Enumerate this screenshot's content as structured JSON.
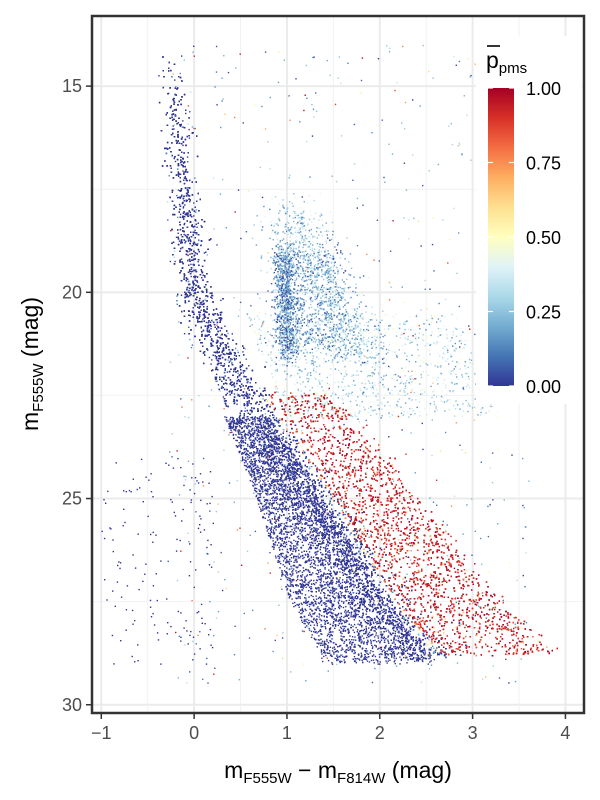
{
  "chart_data": {
    "type": "scatter",
    "title": "",
    "xlabel": {
      "main": "m",
      "sub1": "F555W",
      "sep": " − m",
      "sub2": "F814W",
      "unit": " (mag)"
    },
    "ylabel": {
      "main": "m",
      "sub": "F555W",
      "unit": " (mag)"
    },
    "xlim": [
      -1.1,
      4.2
    ],
    "ylim": [
      30.2,
      13.3
    ],
    "y_reversed": true,
    "x_ticks": [
      -1,
      0,
      1,
      2,
      3,
      4
    ],
    "y_ticks": [
      15,
      20,
      25,
      30
    ],
    "x_tick_labels": [
      "−1",
      "0",
      "1",
      "2",
      "3",
      "4"
    ],
    "y_tick_labels": [
      "15",
      "20",
      "25",
      "30"
    ],
    "grid": true,
    "colorbar": {
      "title_main": "p",
      "title_sub": "pms",
      "title_overline": true,
      "ticks": [
        0.0,
        0.25,
        0.5,
        0.75,
        1.0
      ],
      "tick_labels": [
        "0.00",
        "0.25",
        "0.50",
        "0.75",
        "1.00"
      ],
      "colors": [
        "#313695",
        "#4575b4",
        "#74add1",
        "#abd9e9",
        "#e0f3f8",
        "#ffffbf",
        "#fee090",
        "#fdae61",
        "#f46d43",
        "#d73027",
        "#a50026"
      ],
      "placement": "top-right"
    },
    "point_groups": [
      {
        "name": "",
        "pms": 0.0,
        "x": [
          -0.25,
          -0.05,
          0.2,
          1.0,
          2.5
        ],
        "y": [
          14.0,
          20.0,
          23.0,
          26.5,
          28.8
        ]
      },
      {
        "name": "",
        "pms": 1.0,
        "x": [
          1.2,
          1.7,
          2.3,
          3.0,
          3.7
        ],
        "y": [
          22.5,
          24.5,
          26.0,
          27.5,
          28.5
        ]
      }
    ]
  }
}
